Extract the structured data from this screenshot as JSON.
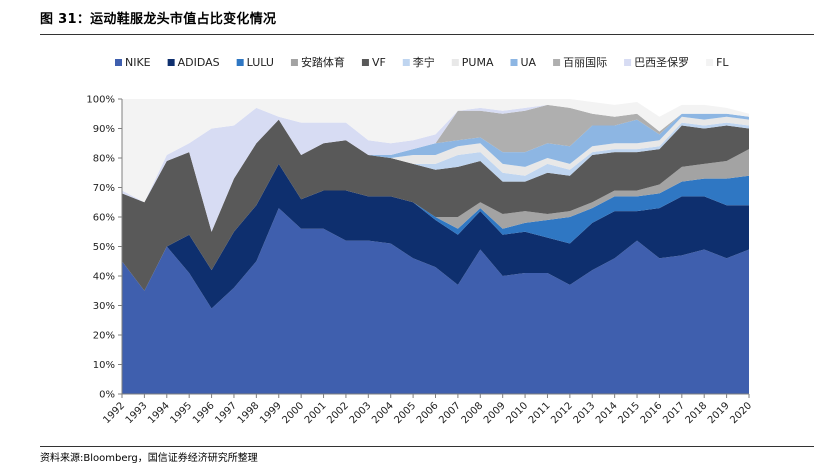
{
  "figure": {
    "title": "图 31：运动鞋服龙头市值占比变化情况",
    "source": "资料来源:Bloomberg，国信证券经济研究所整理"
  },
  "chart_data": {
    "type": "area",
    "stacked": true,
    "title": "",
    "xlabel": "",
    "ylabel": "",
    "ylim": [
      0,
      100
    ],
    "y_unit": "%",
    "yticks": [
      "0%",
      "10%",
      "20%",
      "30%",
      "40%",
      "50%",
      "60%",
      "70%",
      "80%",
      "90%",
      "100%"
    ],
    "legend_position": "top",
    "grid": false,
    "categories": [
      "1992",
      "1993",
      "1994",
      "1995",
      "1996",
      "1997",
      "1998",
      "1999",
      "2000",
      "2001",
      "2002",
      "2003",
      "2004",
      "2005",
      "2006",
      "2007",
      "2008",
      "2009",
      "2010",
      "2011",
      "2012",
      "2013",
      "2014",
      "2015",
      "2016",
      "2017",
      "2018",
      "2019",
      "2020"
    ],
    "series": [
      {
        "name": "NIKE",
        "color": "#3F5FAE",
        "values": [
          45,
          35,
          50,
          41,
          29,
          36,
          45,
          63,
          56,
          56,
          52,
          52,
          51,
          46,
          43,
          37,
          49,
          40,
          41,
          41,
          37,
          42,
          46,
          52,
          46,
          47,
          49,
          46,
          49
        ]
      },
      {
        "name": "ADIDAS",
        "color": "#0E2F6E",
        "values": [
          0,
          0,
          0,
          13,
          13,
          19,
          19,
          15,
          10,
          13,
          17,
          15,
          16,
          19,
          16,
          17,
          13,
          14,
          14,
          12,
          14,
          16,
          16,
          10,
          17,
          20,
          18,
          18,
          15
        ]
      },
      {
        "name": "LULU",
        "color": "#2F77C3",
        "values": [
          0,
          0,
          0,
          0,
          0,
          0,
          0,
          0,
          0,
          0,
          0,
          0,
          0,
          0,
          1,
          2,
          1,
          2,
          3,
          6,
          9,
          5,
          5,
          5,
          5,
          5,
          6,
          9,
          10
        ]
      },
      {
        "name": "安踏体育",
        "color": "#A3A3A3",
        "values": [
          0,
          0,
          0,
          0,
          0,
          0,
          0,
          0,
          0,
          0,
          0,
          0,
          0,
          0,
          0,
          4,
          2,
          5,
          4,
          2,
          2,
          2,
          2,
          2,
          3,
          5,
          5,
          6,
          9
        ]
      },
      {
        "name": "VF",
        "color": "#595959",
        "values": [
          23,
          30,
          29,
          28,
          13,
          18,
          21,
          15,
          15,
          16,
          17,
          14,
          13,
          13,
          16,
          17,
          14,
          11,
          10,
          14,
          12,
          16,
          13,
          13,
          12,
          14,
          12,
          12,
          7
        ]
      },
      {
        "name": "李宁",
        "color": "#BFD5F0",
        "values": [
          0,
          0,
          0,
          0,
          0,
          0,
          0,
          0,
          0,
          0,
          0,
          0,
          0,
          0,
          2,
          4,
          3,
          3,
          2,
          3,
          2,
          1,
          1,
          1,
          1,
          1,
          1,
          1,
          1
        ]
      },
      {
        "name": "PUMA",
        "color": "#E8E8E8",
        "values": [
          0,
          0,
          0,
          0,
          0,
          0,
          0,
          0,
          0,
          0,
          0,
          0,
          0,
          3,
          3,
          3,
          3,
          3,
          3,
          2,
          2,
          2,
          2,
          2,
          2,
          2,
          2,
          2,
          2
        ]
      },
      {
        "name": "UA",
        "color": "#8DB6E3",
        "values": [
          0,
          0,
          0,
          0,
          0,
          0,
          0,
          0,
          0,
          0,
          0,
          0,
          1,
          2,
          4,
          2,
          2,
          4,
          5,
          5,
          6,
          7,
          6,
          8,
          2,
          1,
          2,
          1,
          1
        ]
      },
      {
        "name": "百丽国际",
        "color": "#AFAFAF",
        "values": [
          0,
          0,
          0,
          0,
          0,
          0,
          0,
          0,
          0,
          0,
          0,
          0,
          0,
          0,
          0,
          10,
          9,
          13,
          14,
          13,
          13,
          4,
          3,
          2,
          1,
          0,
          0,
          0,
          0
        ]
      },
      {
        "name": "巴西圣保罗",
        "color": "#D7DCF3",
        "values": [
          1,
          0,
          2,
          3,
          35,
          18,
          12,
          1,
          11,
          7,
          6,
          5,
          4,
          3,
          3,
          0,
          1,
          1,
          1,
          0,
          0,
          0,
          0,
          0,
          0,
          0,
          0,
          0,
          0
        ]
      },
      {
        "name": "FL",
        "color": "#F3F3F3",
        "values": [
          31,
          35,
          19,
          15,
          10,
          9,
          3,
          6,
          8,
          8,
          8,
          14,
          15,
          14,
          12,
          4,
          6,
          4,
          3,
          2,
          3,
          4,
          4,
          4,
          5,
          3,
          3,
          2,
          1
        ]
      }
    ]
  }
}
